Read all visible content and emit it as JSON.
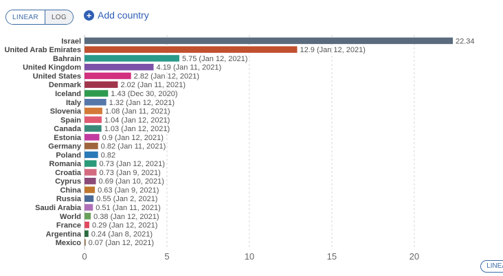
{
  "controls": {
    "linear_label": "LINEAR",
    "log_label": "LOG",
    "add_country_label": "Add country",
    "corner_label": "LINEA"
  },
  "chart_data": {
    "type": "bar",
    "orientation": "horizontal",
    "xlim": [
      0,
      22.34
    ],
    "xticks": [
      0,
      5,
      10,
      15,
      20
    ],
    "grid": true,
    "bars": [
      {
        "category": "Israel",
        "value": 22.34,
        "label": "22.34",
        "color": "#5a6b7d"
      },
      {
        "category": "United Arab Emirates",
        "value": 12.9,
        "label": "12.9 (Jan 12, 2021)",
        "color": "#c0502e"
      },
      {
        "category": "Bahrain",
        "value": 5.75,
        "label": "5.75 (Jan 12, 2021)",
        "color": "#2a9a8a"
      },
      {
        "category": "United Kingdom",
        "value": 4.19,
        "label": "4.19 (Jan 11, 2021)",
        "color": "#7b52a8"
      },
      {
        "category": "United States",
        "value": 2.82,
        "label": "2.82 (Jan 12, 2021)",
        "color": "#d1317f"
      },
      {
        "category": "Denmark",
        "value": 2.02,
        "label": "2.02 (Jan 11, 2021)",
        "color": "#a0364c"
      },
      {
        "category": "Iceland",
        "value": 1.43,
        "label": "1.43 (Dec 30, 2020)",
        "color": "#2e9a4e"
      },
      {
        "category": "Italy",
        "value": 1.32,
        "label": "1.32 (Jan 12, 2021)",
        "color": "#5577aa"
      },
      {
        "category": "Slovenia",
        "value": 1.08,
        "label": "1.08 (Jan 11, 2021)",
        "color": "#d47a38"
      },
      {
        "category": "Spain",
        "value": 1.04,
        "label": "1.04 (Jan 12, 2021)",
        "color": "#e05a72"
      },
      {
        "category": "Canada",
        "value": 1.03,
        "label": "1.03 (Jan 12, 2021)",
        "color": "#3a8a7a"
      },
      {
        "category": "Estonia",
        "value": 0.9,
        "label": "0.9 (Jan 12, 2021)",
        "color": "#c23ca0"
      },
      {
        "category": "Germany",
        "value": 0.82,
        "label": "0.82 (Jan 11, 2021)",
        "color": "#a0643c"
      },
      {
        "category": "Poland",
        "value": 0.82,
        "label": "0.82",
        "color": "#2a7ab8"
      },
      {
        "category": "Romania",
        "value": 0.73,
        "label": "0.73 (Jan 12, 2021)",
        "color": "#2a9a7a"
      },
      {
        "category": "Croatia",
        "value": 0.73,
        "label": "0.73 (Jan 9, 2021)",
        "color": "#d46a80"
      },
      {
        "category": "Cyprus",
        "value": 0.69,
        "label": "0.69 (Jan 10, 2021)",
        "color": "#8a4a78"
      },
      {
        "category": "China",
        "value": 0.63,
        "label": "0.63 (Jan 9, 2021)",
        "color": "#c07830"
      },
      {
        "category": "Russia",
        "value": 0.55,
        "label": "0.55 (Jan 2, 2021)",
        "color": "#4a6a98"
      },
      {
        "category": "Saudi Arabia",
        "value": 0.51,
        "label": "0.51 (Jan 11, 2021)",
        "color": "#b070b8"
      },
      {
        "category": "World",
        "value": 0.38,
        "label": "0.38 (Jan 12, 2021)",
        "color": "#6aa05a"
      },
      {
        "category": "France",
        "value": 0.29,
        "label": "0.29 (Jan 12, 2021)",
        "color": "#e04a60"
      },
      {
        "category": "Argentina",
        "value": 0.24,
        "label": "0.24 (Jan 8, 2021)",
        "color": "#2a6a40"
      },
      {
        "category": "Mexico",
        "value": 0.07,
        "label": "0.07 (Jan 12, 2021)",
        "color": "#8a6a4a"
      }
    ]
  }
}
